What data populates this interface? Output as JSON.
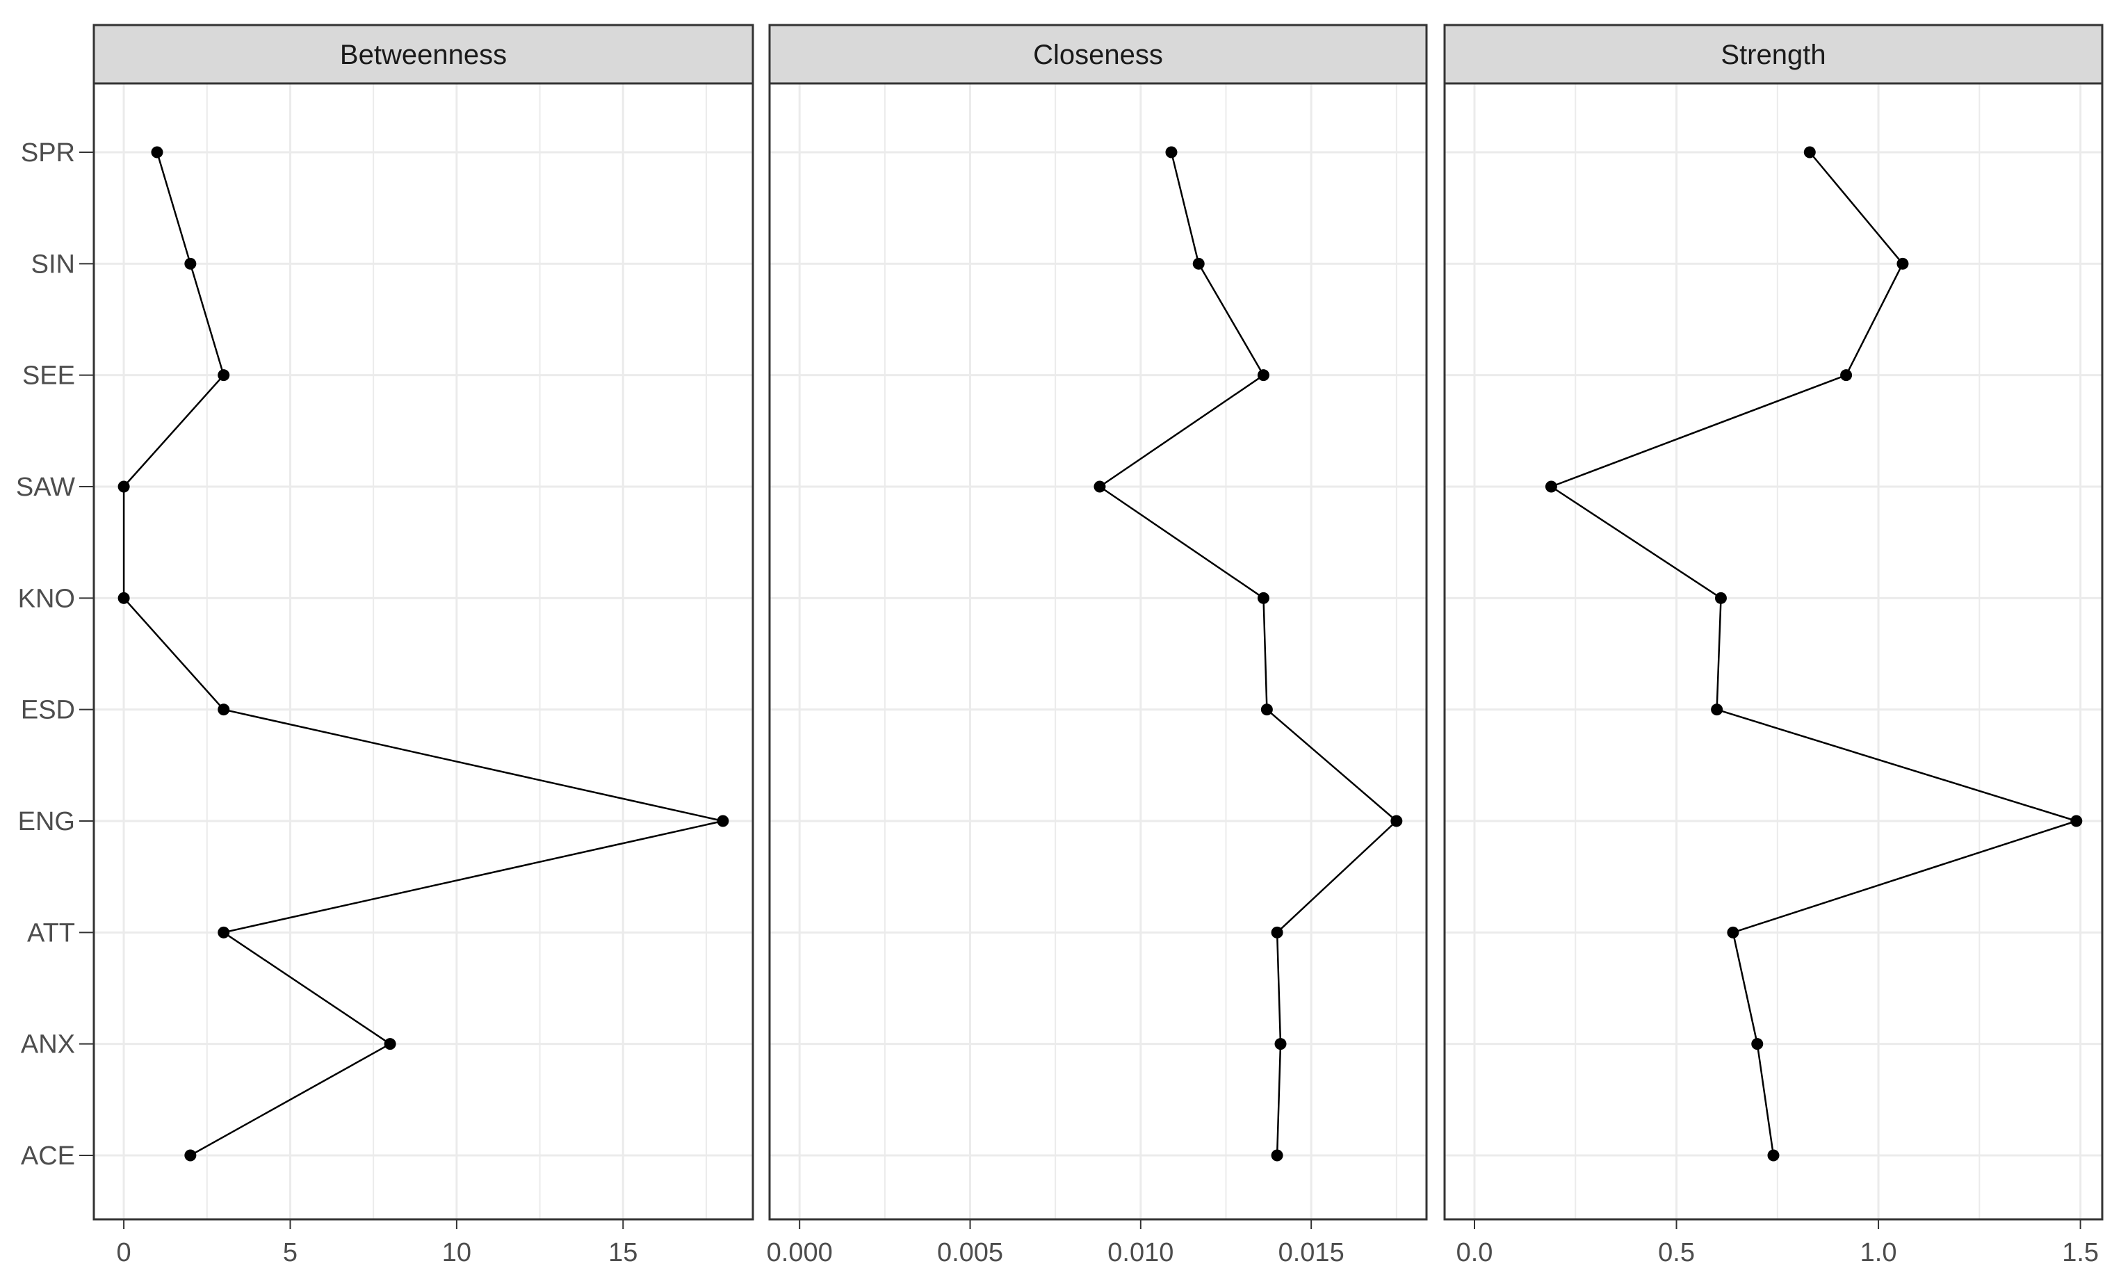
{
  "chart_data": {
    "type": "line",
    "layout": "facets",
    "categories": [
      "ACE",
      "ANX",
      "ATT",
      "ENG",
      "ESD",
      "KNO",
      "SAW",
      "SEE",
      "SIN",
      "SPR"
    ],
    "panels": [
      {
        "title": "Betweenness",
        "values": [
          2,
          8,
          3,
          18,
          3,
          0,
          0,
          3,
          2,
          1
        ],
        "xlim": [
          -0.9,
          18.9
        ],
        "xticks": [
          0,
          5,
          10,
          15
        ],
        "xtick_labels": [
          "0",
          "5",
          "10",
          "15"
        ]
      },
      {
        "title": "Closeness",
        "values": [
          0.014,
          0.0141,
          0.014,
          0.0175,
          0.0137,
          0.0136,
          0.0088,
          0.0136,
          0.0117,
          0.0109
        ],
        "xlim": [
          -0.00088,
          0.01838
        ],
        "xticks": [
          0.0,
          0.005,
          0.01,
          0.015
        ],
        "xtick_labels": [
          "0.000",
          "0.005",
          "0.010",
          "0.015"
        ]
      },
      {
        "title": "Strength",
        "values": [
          0.74,
          0.7,
          0.64,
          1.49,
          0.6,
          0.61,
          0.19,
          0.92,
          1.06,
          0.83
        ],
        "xlim": [
          -0.074,
          1.554
        ],
        "xticks": [
          0.0,
          0.5,
          1.0,
          1.5
        ],
        "xtick_labels": [
          "0.0",
          "0.5",
          "1.0",
          "1.5"
        ]
      }
    ],
    "grid": true,
    "legend": "none",
    "colors": {
      "strip_fill": "#d9d9d9",
      "panel_border": "#333333",
      "grid": "#ebebeb",
      "line": "#000000",
      "point": "#000000"
    }
  }
}
